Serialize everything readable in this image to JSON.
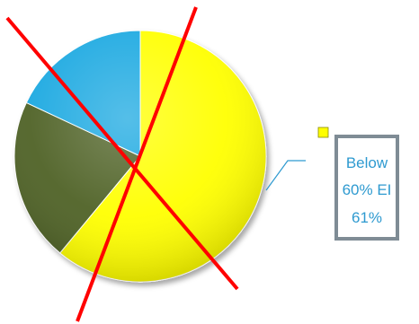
{
  "chart_data": {
    "type": "pie",
    "slices": [
      {
        "name": "Below 60% EI",
        "value": 61,
        "color": "#ffff00"
      },
      {
        "name": "",
        "value": 21,
        "color": "#4f6228"
      },
      {
        "name": "",
        "value": 18,
        "color": "#1fa9e1"
      }
    ],
    "legend": {
      "position": "right"
    },
    "callout": {
      "slice_index": 0,
      "lines": [
        "Below",
        "60% EI",
        "61%"
      ],
      "text_color": "#2e9ad0",
      "border_color": "#7f8c95",
      "legend_marker_color": "#ffff00"
    },
    "overlay": {
      "description_marks": "crossed-out",
      "line_color": "#ff0000"
    }
  }
}
